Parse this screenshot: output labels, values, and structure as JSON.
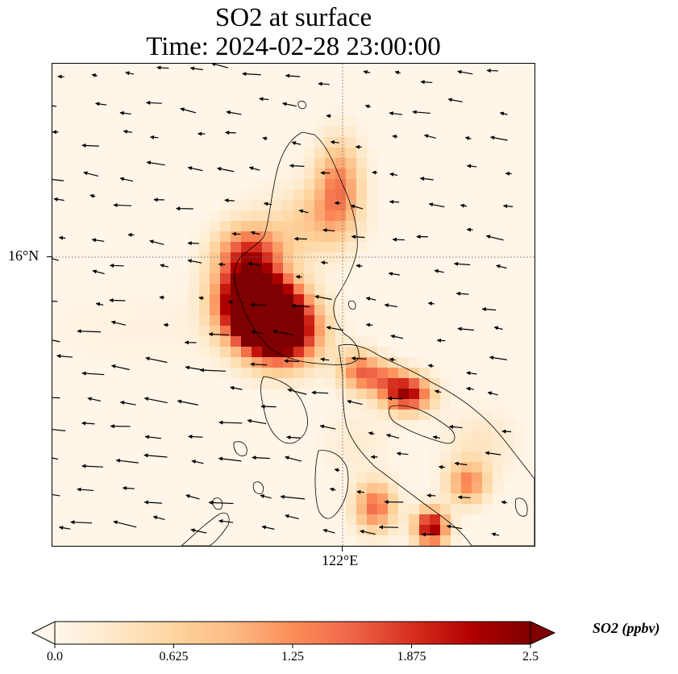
{
  "title": {
    "line1": "SO2 at surface",
    "line2": "Time: 2024-02-28 23:00:00"
  },
  "map": {
    "lat_gridline_label": "16°N",
    "lon_gridline_label": "122°E",
    "gridline_style": "dotted",
    "background_color": "#fff5e8",
    "coastline_color": "#000000",
    "vector_color": "#000000"
  },
  "colorbar": {
    "label": "SO2 (ppbv)",
    "ticks": [
      "0.0",
      "0.625",
      "1.25",
      "1.875",
      "2.5"
    ],
    "vmin": 0.0,
    "vmax": 2.5,
    "extend": "both",
    "colormap": "OrRd",
    "stops": [
      "#fff7ec",
      "#fee8c8",
      "#fdd49e",
      "#fdbb84",
      "#fc8d59",
      "#ef6548",
      "#d7301f",
      "#b30000",
      "#7f0000"
    ]
  }
}
